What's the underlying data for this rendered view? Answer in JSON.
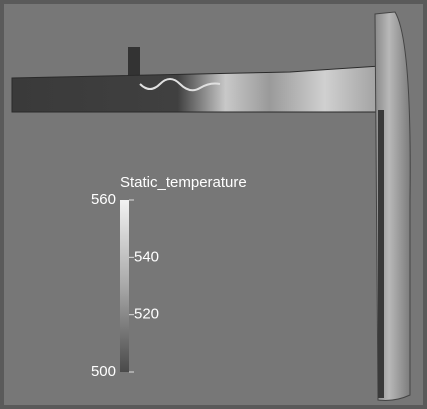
{
  "legend": {
    "title": "Static_temperature",
    "range": [
      500,
      560
    ],
    "ticks": [
      560,
      540,
      520,
      500
    ]
  }
}
